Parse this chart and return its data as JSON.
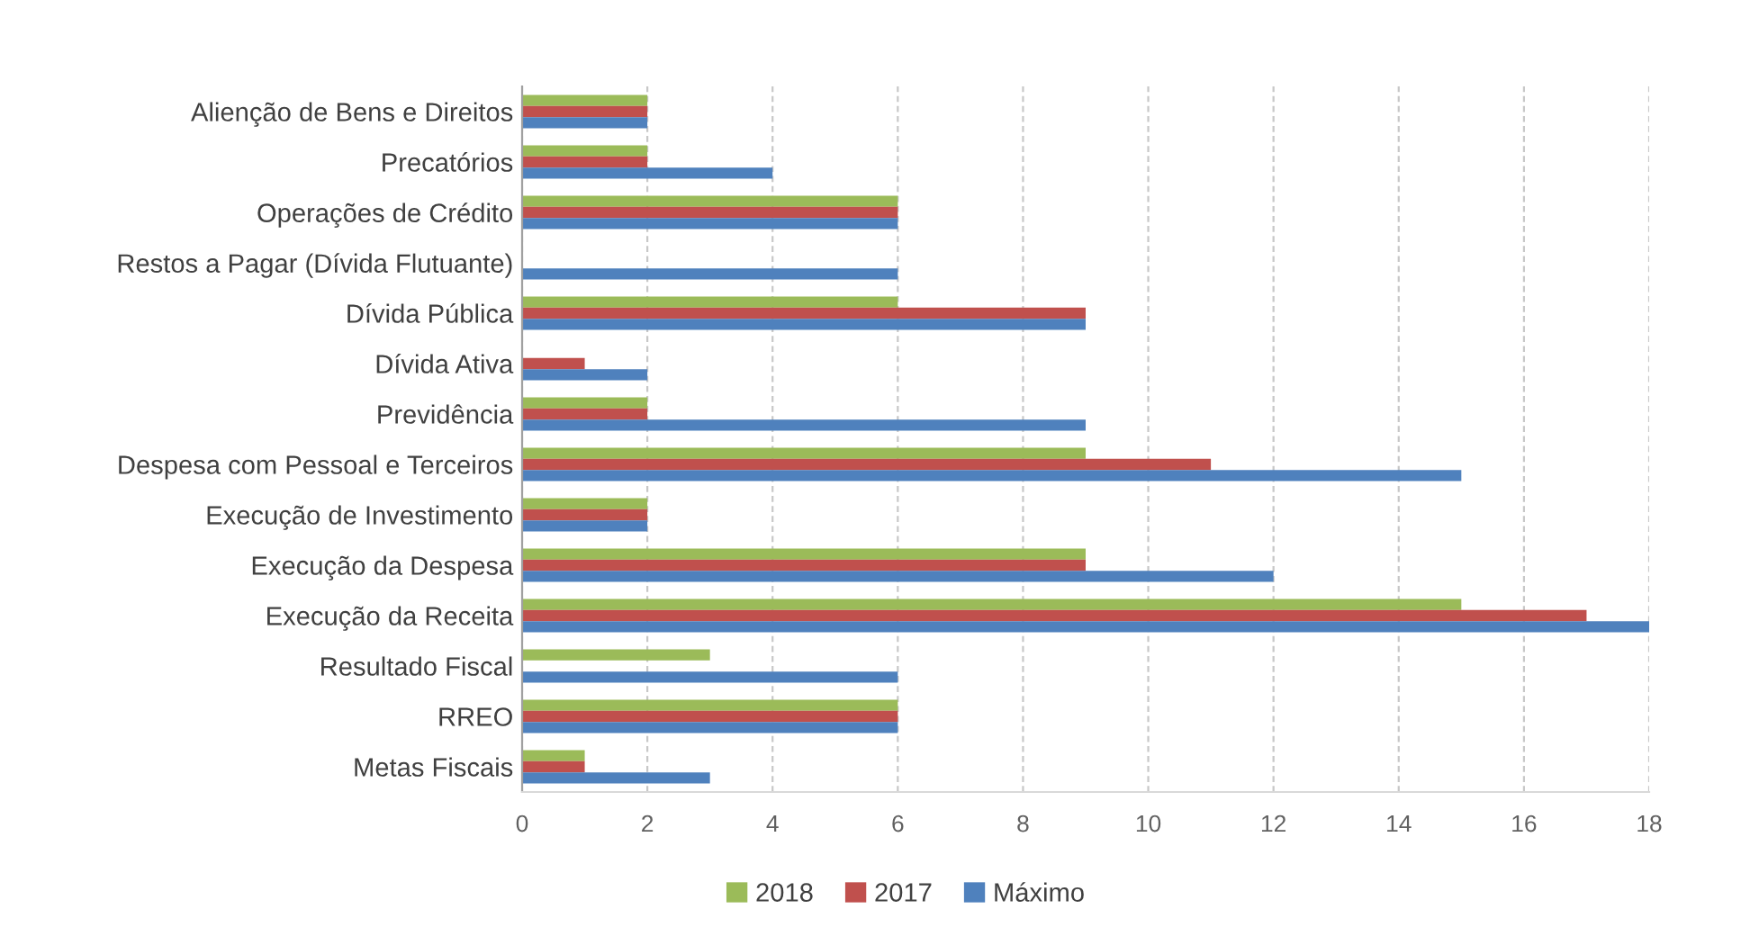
{
  "chart_data": {
    "type": "bar",
    "orientation": "horizontal",
    "categories": [
      "Alienção de Bens e Direitos",
      "Precatórios",
      "Operações de Crédito",
      "Restos a Pagar (Dívida Flutuante)",
      "Dívida Pública",
      "Dívida Ativa",
      "Previdência",
      "Despesa com Pessoal e Terceiros",
      "Execução de Investimento",
      "Execução da Despesa",
      "Execução da Receita",
      "Resultado Fiscal",
      "RREO",
      "Metas Fiscais"
    ],
    "series": [
      {
        "name": "2018",
        "color": "#9bbb59",
        "values": [
          2,
          2,
          6,
          null,
          6,
          null,
          2,
          9,
          2,
          9,
          15,
          3,
          6,
          1
        ]
      },
      {
        "name": "2017",
        "color": "#c0504d",
        "values": [
          2,
          2,
          6,
          null,
          9,
          1,
          2,
          11,
          2,
          9,
          17,
          null,
          6,
          1
        ]
      },
      {
        "name": "Máximo",
        "color": "#4f81bd",
        "values": [
          2,
          4,
          6,
          6,
          9,
          2,
          9,
          15,
          2,
          12,
          18,
          6,
          6,
          3
        ]
      }
    ],
    "xlim": [
      0,
      18
    ],
    "xticks": [
      0,
      2,
      4,
      6,
      8,
      10,
      12,
      14,
      16,
      18
    ],
    "grid": "x",
    "legend": "bottom"
  }
}
